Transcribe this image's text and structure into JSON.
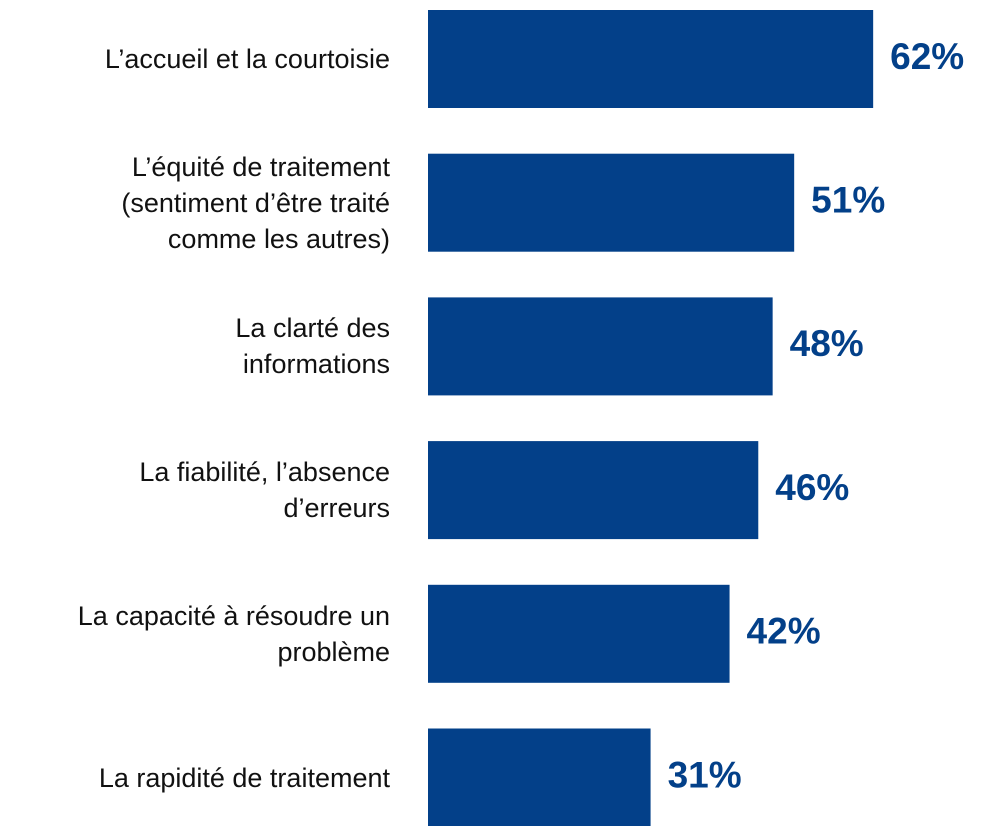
{
  "chart_data": {
    "type": "bar",
    "orientation": "horizontal",
    "categories": [
      "L’accueil et la courtoisie",
      "L’équité de traitement\n(sentiment d’être traité\ncomme les autres)",
      "La clarté des\ninformations",
      "La fiabilité, l’absence\nd’erreurs",
      "La capacité à résoudre un\nproblème",
      "La rapidité de traitement"
    ],
    "values": [
      62,
      51,
      48,
      46,
      42,
      31
    ],
    "value_labels": [
      "62%",
      "51%",
      "48%",
      "46%",
      "42%",
      "31%"
    ],
    "color": "#034089"
  }
}
